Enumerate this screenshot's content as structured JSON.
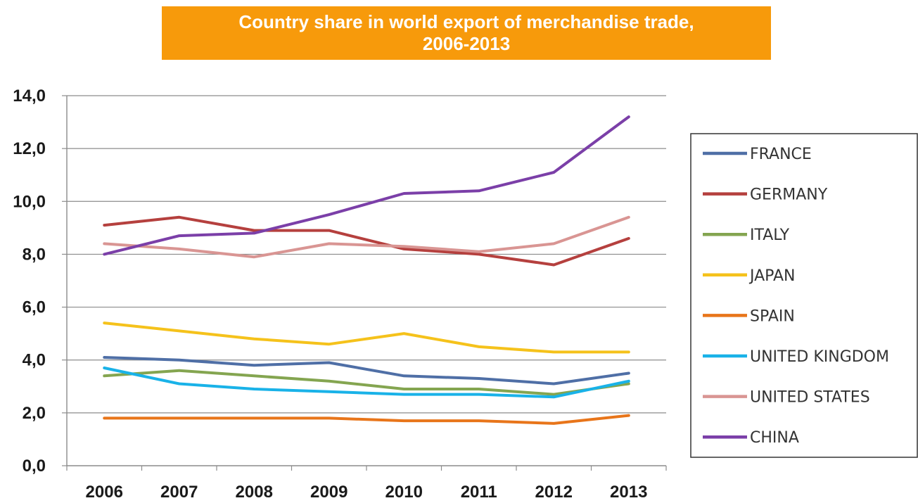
{
  "chart_data": {
    "type": "line",
    "title": "Country share in world export of merchandise trade,",
    "subtitle": "2006-2013",
    "xlabel": "",
    "ylabel": "",
    "ylim": [
      0,
      14
    ],
    "yticks": [
      "0,0",
      "2,0",
      "4,0",
      "6,0",
      "8,0",
      "10,0",
      "12,0",
      "14,0"
    ],
    "ytick_values": [
      0,
      2,
      4,
      6,
      8,
      10,
      12,
      14
    ],
    "categories": [
      "2006",
      "2007",
      "2008",
      "2009",
      "2010",
      "2011",
      "2012",
      "2013"
    ],
    "grid": true,
    "legend_position": "right",
    "series": [
      {
        "name": "FRANCE",
        "color": "#4f6fa6",
        "values": [
          4.1,
          4.0,
          3.8,
          3.9,
          3.4,
          3.3,
          3.1,
          3.5
        ]
      },
      {
        "name": "GERMANY",
        "color": "#b5403e",
        "values": [
          9.1,
          9.4,
          8.9,
          8.9,
          8.2,
          8.0,
          7.6,
          8.6
        ]
      },
      {
        "name": "ITALY",
        "color": "#84a550",
        "values": [
          3.4,
          3.6,
          3.4,
          3.2,
          2.9,
          2.9,
          2.7,
          3.1
        ]
      },
      {
        "name": "JAPAN",
        "color": "#f5c21b",
        "values": [
          5.4,
          5.1,
          4.8,
          4.6,
          5.0,
          4.5,
          4.3,
          4.3
        ]
      },
      {
        "name": "SPAIN",
        "color": "#e8751a",
        "values": [
          1.8,
          1.8,
          1.8,
          1.8,
          1.7,
          1.7,
          1.6,
          1.9
        ]
      },
      {
        "name": "UNITED KINGDOM",
        "color": "#19b2e8",
        "values": [
          3.7,
          3.1,
          2.9,
          2.8,
          2.7,
          2.7,
          2.6,
          3.2
        ]
      },
      {
        "name": "UNITED STATES",
        "color": "#d99593",
        "values": [
          8.4,
          8.2,
          7.9,
          8.4,
          8.3,
          8.1,
          8.4,
          9.4
        ]
      },
      {
        "name": "CHINA",
        "color": "#7b3fa8",
        "values": [
          8.0,
          8.7,
          8.8,
          9.5,
          10.3,
          10.4,
          11.1,
          13.2
        ]
      }
    ]
  }
}
